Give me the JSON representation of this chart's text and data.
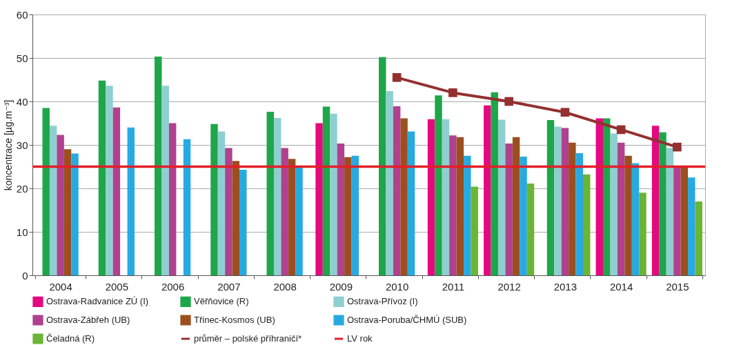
{
  "chart_data": {
    "type": "bar",
    "ylabel": "koncentrace [µg.m⁻³]",
    "categories": [
      "2004",
      "2005",
      "2006",
      "2007",
      "2008",
      "2009",
      "2010",
      "2011",
      "2012",
      "2013",
      "2014",
      "2015"
    ],
    "ylim": [
      0,
      60
    ],
    "yticks": [
      0,
      10,
      20,
      30,
      40,
      50,
      60
    ],
    "grid": "y",
    "legend": "bottom",
    "series": [
      {
        "name": "Ostrava-Radvanice ZÚ (I)",
        "color": "#e4097f",
        "values": [
          null,
          null,
          null,
          null,
          null,
          35,
          null,
          35.9,
          39.1,
          null,
          36.1,
          34.4
        ]
      },
      {
        "name": "Věřňovice (R)",
        "color": "#1ea64a",
        "values": [
          38.5,
          44.8,
          50.3,
          34.8,
          37.6,
          38.8,
          50.2,
          41.4,
          42.1,
          35.7,
          36.1,
          32.9
        ]
      },
      {
        "name": "Ostrava-Přívoz (I)",
        "color": "#8ecfd0",
        "values": [
          34.4,
          43.6,
          43.6,
          33.1,
          36.2,
          37.2,
          42.4,
          35.9,
          35.8,
          34.2,
          32.6,
          29.3
        ]
      },
      {
        "name": "Ostrava-Zábřeh (UB)",
        "color": "#b0418f",
        "values": [
          32.3,
          38.6,
          35,
          29.3,
          29.3,
          30.3,
          38.9,
          32.2,
          30.3,
          33.9,
          30.5,
          25
        ]
      },
      {
        "name": "Třinec-Kosmos (UB)",
        "color": "#9c4f1e",
        "values": [
          29,
          null,
          null,
          26.3,
          26.8,
          27.2,
          36.1,
          31.8,
          31.8,
          30.5,
          27.5,
          25
        ]
      },
      {
        "name": "Ostrava-Poruba/ČHMÚ (SUB)",
        "color": "#27aae1",
        "values": [
          28,
          34,
          31.3,
          24.3,
          24.9,
          27.5,
          33.1,
          27.5,
          27.3,
          28.1,
          25.8,
          22.5
        ]
      },
      {
        "name": "Čeladná (R)",
        "color": "#6bb536",
        "values": [
          null,
          null,
          null,
          null,
          null,
          null,
          null,
          20.4,
          21.1,
          23.2,
          19,
          17
        ]
      },
      {
        "name": "průměr – polské příhraničí*",
        "color": "#943030",
        "type": "line",
        "marker": "square",
        "values": [
          null,
          null,
          null,
          null,
          null,
          null,
          45.5,
          42,
          40,
          37.5,
          33.5,
          29.5
        ]
      }
    ],
    "ref_lines": [
      {
        "axis": "y",
        "value": 25,
        "label": "LV rok",
        "color": "#e31e24"
      }
    ]
  }
}
